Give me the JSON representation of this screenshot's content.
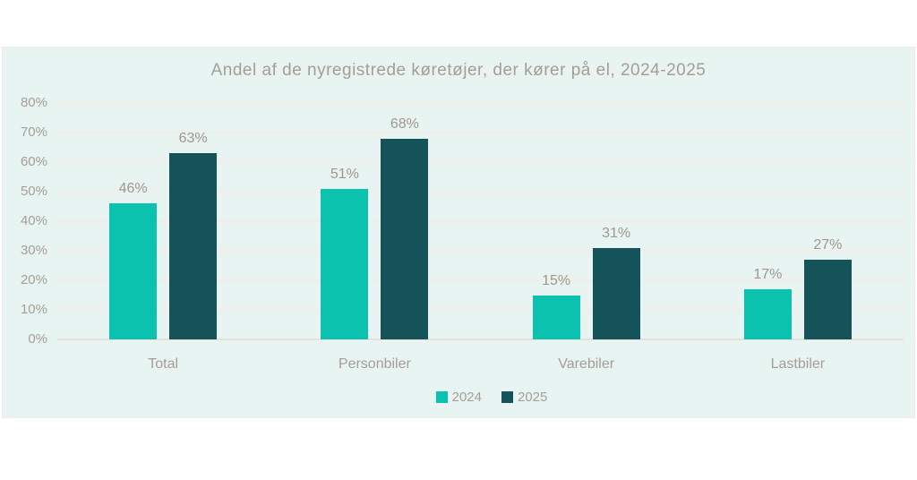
{
  "chart_data": {
    "type": "bar",
    "title": "Andel af de nyregistrede køretøjer, der kører på el, 2024-2025",
    "categories": [
      "Total",
      "Personbiler",
      "Varebiler",
      "Lastbiler"
    ],
    "series": [
      {
        "name": "2024",
        "color": "#0AC2AD",
        "values": [
          46,
          51,
          15,
          17
        ]
      },
      {
        "name": "2025",
        "color": "#14535A",
        "values": [
          63,
          68,
          31,
          27
        ]
      }
    ],
    "value_suffix": "%",
    "xlabel": "",
    "ylabel": "",
    "ylim": [
      0,
      80
    ],
    "ytick_step": 10,
    "ytick_labels": [
      "0%",
      "10%",
      "20%",
      "30%",
      "40%",
      "50%",
      "60%",
      "70%",
      "80%"
    ],
    "grid": true,
    "legend_position": "bottom"
  },
  "colors": {
    "page_bg": "#FFFFFF",
    "panel_bg": "#E8F4F2",
    "gridline": "#F3EDE5",
    "baseline": "#E6E0D7",
    "text_muted": "#A59E94",
    "value_label": "#9E978D"
  }
}
